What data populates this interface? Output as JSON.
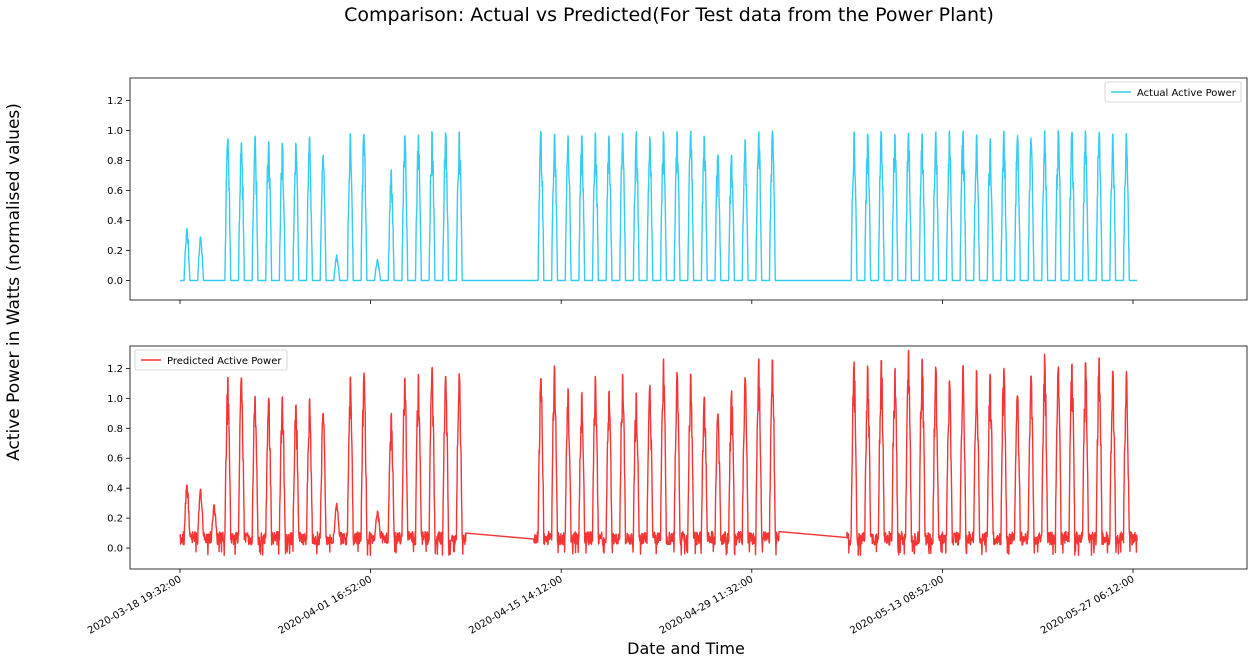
{
  "figure": {
    "title": "Comparison: Actual vs Predicted(For Test data from the Power Plant)",
    "xlabel": "Date and Time",
    "ylabel": "Active Power in Watts (normalised values)"
  },
  "chart_data": [
    {
      "type": "line",
      "panel": "top",
      "series": [
        {
          "name": "Actual Active Power",
          "color": "#33ccf2"
        }
      ],
      "ylim": [
        -0.13,
        1.35
      ],
      "yticks": [
        0.0,
        0.2,
        0.4,
        0.6,
        0.8,
        1.0,
        1.2
      ],
      "ytick_labels": [
        "0.0",
        "0.2",
        "0.4",
        "0.6",
        "0.8",
        "1.0",
        "1.2"
      ],
      "legend_position": "upper-right",
      "grid": false,
      "daily_peaks": [
        0.35,
        0.29,
        0.1,
        0.95,
        0.93,
        0.97,
        0.94,
        0.93,
        0.92,
        0.96,
        0.84,
        0.17,
        0.99,
        0.99,
        0.14,
        0.74,
        0.97,
        0.97,
        1.0,
        1.0,
        1.0,
        0,
        0,
        0,
        0,
        0,
        1.0,
        0.99,
        0.97,
        0.98,
        0.99,
        0.97,
        1.0,
        1.0,
        0.96,
        1.0,
        1.0,
        1.0,
        0.97,
        0.85,
        0.84,
        0.95,
        1.0,
        1.0,
        0,
        0,
        0,
        0,
        0,
        1.0,
        1.0,
        1.0,
        1.0,
        1.0,
        0.99,
        1.0,
        1.0,
        1.0,
        0.98,
        0.95,
        1.0,
        0.97,
        0.95,
        1.0,
        1.0,
        1.0,
        1.0,
        1.0,
        1.0,
        0.99
      ]
    },
    {
      "type": "line",
      "panel": "bottom",
      "series": [
        {
          "name": "Predicted Active Power",
          "color": "#f53434"
        }
      ],
      "ylim": [
        -0.14,
        1.35
      ],
      "yticks": [
        0.0,
        0.2,
        0.4,
        0.6,
        0.8,
        1.0,
        1.2
      ],
      "ytick_labels": [
        "0.0",
        "0.2",
        "0.4",
        "0.6",
        "0.8",
        "1.0",
        "1.2"
      ],
      "legend_position": "upper-left",
      "grid": false,
      "daily_peaks": [
        0.38,
        0.35,
        0.24,
        1.1,
        1.09,
        0.97,
        0.96,
        0.97,
        0.92,
        0.95,
        0.87,
        0.25,
        1.1,
        1.13,
        0.2,
        0.85,
        1.09,
        1.12,
        1.16,
        1.11,
        1.12,
        0.11,
        0.1,
        0.1,
        0.09,
        0.08,
        1.1,
        1.18,
        1.03,
        0.99,
        1.1,
        1.0,
        1.12,
        1.0,
        1.04,
        1.22,
        1.14,
        1.12,
        0.97,
        0.86,
        1.0,
        1.09,
        1.22,
        1.21,
        0.11,
        0.1,
        0.1,
        0.09,
        0.08,
        1.2,
        1.17,
        1.22,
        1.15,
        1.28,
        1.23,
        1.16,
        1.07,
        1.17,
        1.16,
        1.13,
        1.16,
        0.98,
        1.1,
        1.25,
        1.17,
        1.2,
        1.2,
        1.22,
        1.15,
        1.13
      ]
    }
  ],
  "xaxis": {
    "ticks": [
      "2020-03-18 19:32:00",
      "2020-04-01 16:52:00",
      "2020-04-15 14:12:00",
      "2020-04-29 11:32:00",
      "2020-05-13 08:52:00",
      "2020-05-27 06:12:00"
    ],
    "tick_rotation": 30
  }
}
